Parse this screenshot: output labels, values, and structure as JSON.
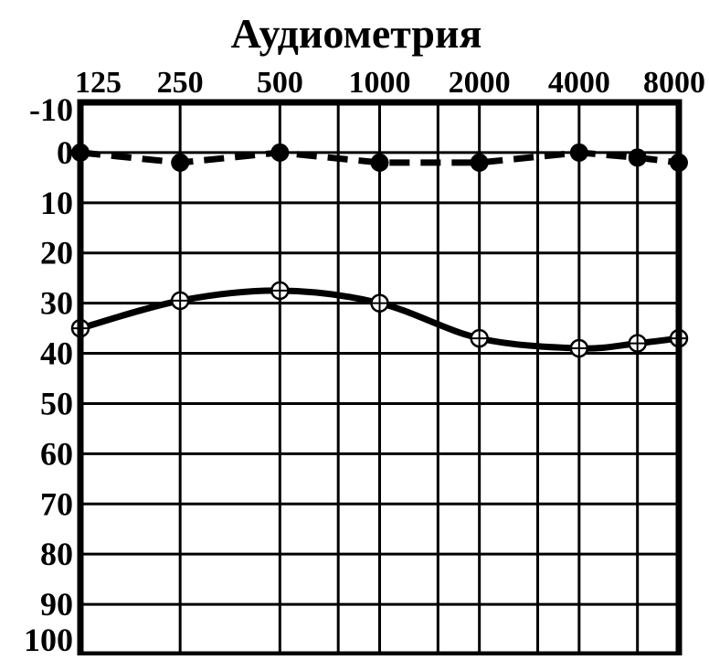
{
  "chart_data": {
    "type": "line",
    "title": "Аудиометрия",
    "x_tick_labels": [
      "125",
      "250",
      "500",
      "1000",
      "2000",
      "4000",
      "8000"
    ],
    "y_tick_labels": [
      "-10",
      "0",
      "10",
      "20",
      "30",
      "40",
      "50",
      "60",
      "70",
      "80",
      "90",
      "100"
    ],
    "ylim": [
      -10,
      100
    ],
    "y_inverted": true,
    "grid": true,
    "legend": "none",
    "x": [
      125,
      250,
      500,
      1000,
      2000,
      4000,
      6000,
      8000
    ],
    "series": [
      {
        "style": "dashed",
        "marker": "filled-circle",
        "color": "#000000",
        "values": [
          0,
          2,
          0,
          2,
          2,
          0,
          1,
          2
        ]
      },
      {
        "style": "solid",
        "marker": "open-crossed-circle",
        "color": "#000000",
        "values": [
          35,
          29.5,
          27.5,
          30,
          37,
          39,
          38,
          37
        ]
      }
    ]
  }
}
